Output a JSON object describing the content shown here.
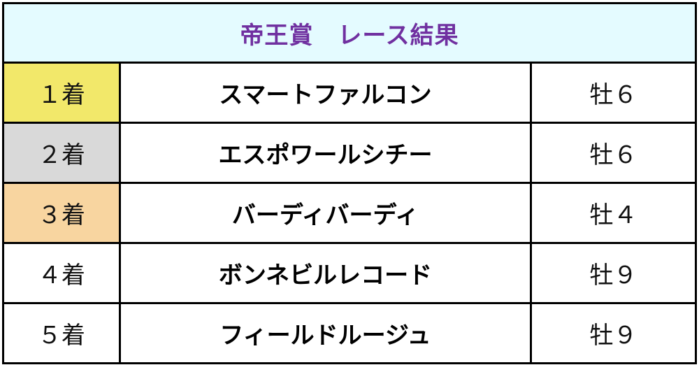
{
  "title": "帝王賞　レース結果",
  "colors": {
    "header_bg": "#e4fbff",
    "title": "#7030a0",
    "first": "#f2e86a",
    "second": "#d9d9d9",
    "third": "#f8d5a0",
    "other": "#ffffff"
  },
  "rows": [
    {
      "place": "１着",
      "horse": "スマートファルコン",
      "info": "牡６",
      "color": "#f2e86a"
    },
    {
      "place": "２着",
      "horse": "エスポワールシチー",
      "info": "牡６",
      "color": "#d9d9d9"
    },
    {
      "place": "３着",
      "horse": "バーディバーディ",
      "info": "牡４",
      "color": "#f8d5a0"
    },
    {
      "place": "４着",
      "horse": "ボンネビルレコード",
      "info": "牡９",
      "color": "#ffffff"
    },
    {
      "place": "５着",
      "horse": "フィールドルージュ",
      "info": "牡９",
      "color": "#ffffff"
    }
  ]
}
